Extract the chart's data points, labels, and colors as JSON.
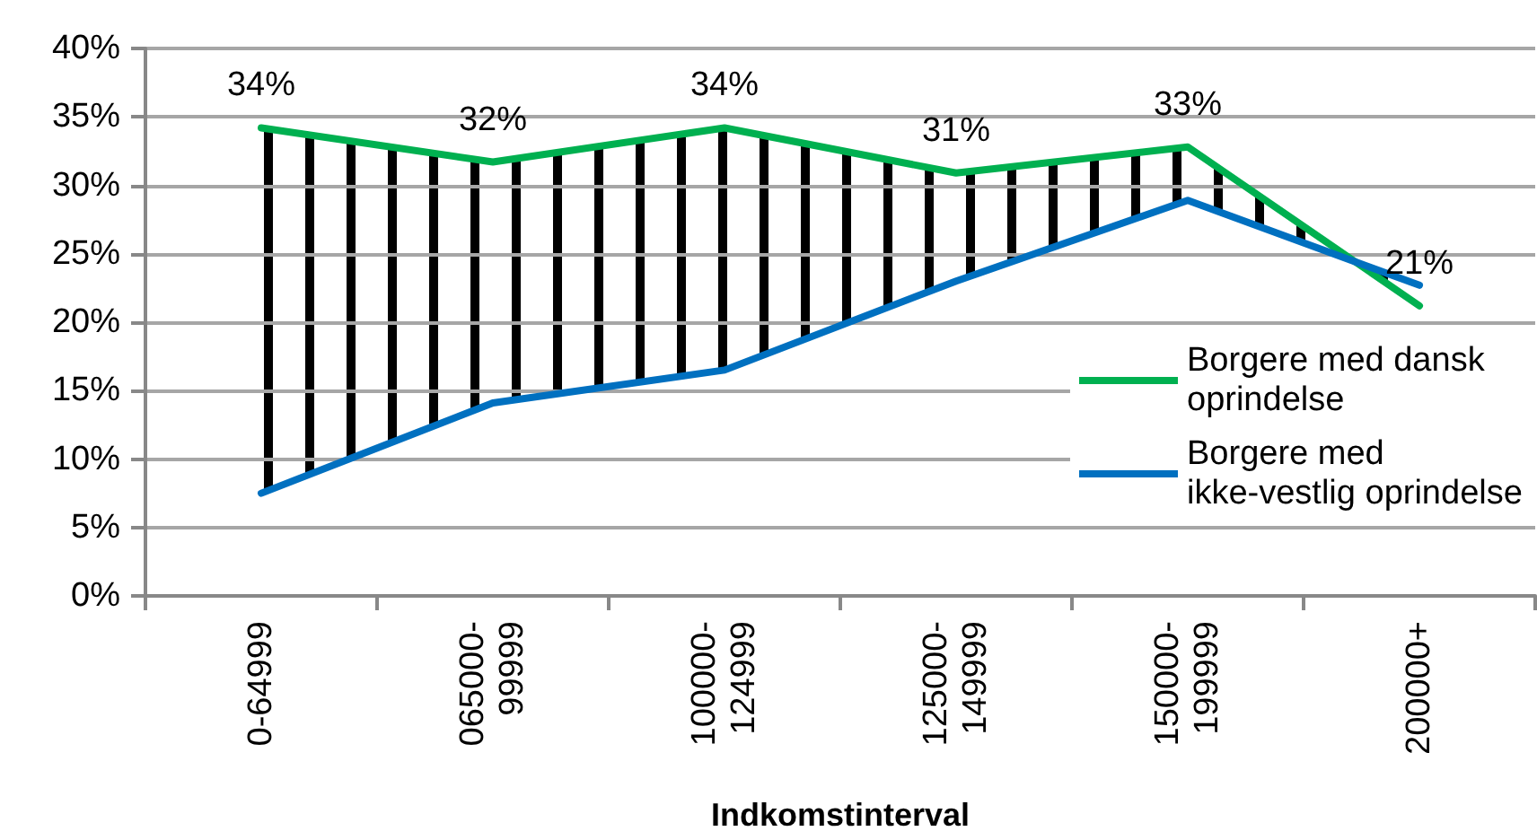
{
  "chart_data": {
    "type": "line",
    "xlabel": "Indkomstinterval",
    "categories": [
      "0-64999",
      "065000-99999",
      "100000-124999",
      "125000-149999",
      "150000-199999",
      "200000+"
    ],
    "series": [
      {
        "name": "Borgere med dansk oprindelse",
        "color": "#00b050",
        "values": [
          34.2,
          31.7,
          34.2,
          30.9,
          32.8,
          21.2
        ],
        "value_labels": [
          "34%",
          "32%",
          "34%",
          "31%",
          "33%",
          "21%"
        ]
      },
      {
        "name": "Borgere med ikke-vestlig oprindelse",
        "color": "#0070c0",
        "values": [
          7.5,
          14.1,
          16.5,
          23.0,
          28.9,
          22.7
        ]
      }
    ],
    "ylim": [
      0,
      40
    ],
    "yticks": [
      {
        "value": 0,
        "label": "0%"
      },
      {
        "value": 5,
        "label": "5%"
      },
      {
        "value": 10,
        "label": "10%"
      },
      {
        "value": 15,
        "label": "15%"
      },
      {
        "value": 20,
        "label": "20%"
      },
      {
        "value": 25,
        "label": "25%"
      },
      {
        "value": 30,
        "label": "30%"
      },
      {
        "value": 35,
        "label": "35%"
      },
      {
        "value": 40,
        "label": "40%"
      }
    ],
    "grid": "y",
    "legend": "right",
    "marker": "none",
    "line_style": "solid"
  }
}
